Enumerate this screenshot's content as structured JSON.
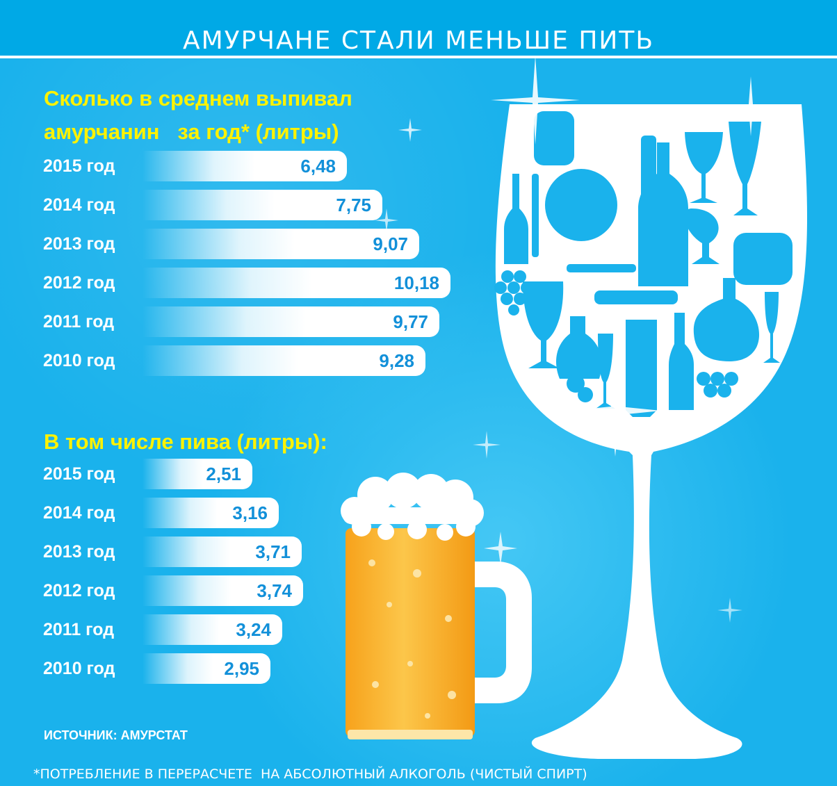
{
  "title": "АМУРЧАНЕ СТАЛИ МЕНЬШЕ ПИТЬ",
  "colors": {
    "background": "#1ab2ec",
    "heading": "#fff200",
    "bar": "#ffffff",
    "value_text": "#1290d9",
    "beer": "#f9b22a",
    "foam": "#ffffff"
  },
  "chart_data": [
    {
      "type": "bar",
      "orientation": "horizontal",
      "title_lines": [
        "Сколько в среднем выпивал",
        "амурчанин   за год* (литры)"
      ],
      "categories": [
        "2015 год",
        "2014 год",
        "2013 год",
        "2012 год",
        "2011 год",
        "2010 год"
      ],
      "values": [
        6.48,
        7.75,
        9.07,
        10.18,
        9.77,
        9.28
      ],
      "labels": [
        "6,48",
        "7,75",
        "9,07",
        "10,18",
        "9,77",
        "9,28"
      ]
    },
    {
      "type": "bar",
      "orientation": "horizontal",
      "title": "В том числе пива (литры):",
      "categories": [
        "2015 год",
        "2014 год",
        "2013 год",
        "2012 год",
        "2011 год",
        "2010 год"
      ],
      "values": [
        2.51,
        3.16,
        3.71,
        3.74,
        3.24,
        2.95
      ],
      "labels": [
        "2,51",
        "3,16",
        "3,71",
        "3,74",
        "3,24",
        "2,95"
      ]
    }
  ],
  "icons": [
    "wine-glass-silhouette-icon",
    "beer-mug-icon",
    "sparkle-icon"
  ],
  "source": "ИСТОЧНИК: АМУРСТАТ",
  "footnote": "*ПОТРЕБЛЕНИЕ В ПЕРЕРАСЧЕТЕ  НА АБСОЛЮТНЫЙ АЛКОГОЛЬ (ЧИСТЫЙ СПИРТ)"
}
